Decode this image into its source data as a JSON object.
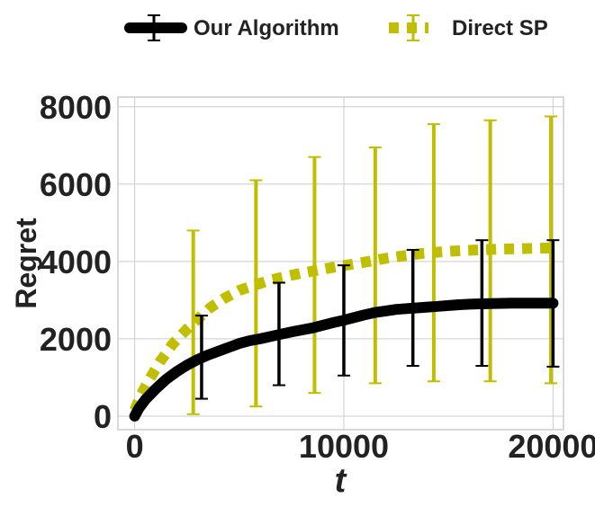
{
  "chart_data": {
    "type": "line",
    "title": "",
    "xlabel": "t",
    "ylabel": "Regret",
    "xlim": [
      -800,
      20500
    ],
    "ylim": [
      -350,
      8250
    ],
    "xticks": [
      0,
      10000,
      20000
    ],
    "xtick_labels": [
      "0",
      "10000",
      "20000"
    ],
    "yticks": [
      0,
      2000,
      4000,
      6000,
      8000
    ],
    "ytick_labels": [
      "0",
      "2000",
      "4000",
      "6000",
      "8000"
    ],
    "grid": true,
    "legend_placement": "top-center-outside",
    "series": [
      {
        "name": "Our Algorithm",
        "color": "#000000",
        "style": "solid",
        "x": [
          0,
          200,
          500,
          1000,
          1500,
          2000,
          2500,
          3000,
          3500,
          4000,
          4500,
          5000,
          5500,
          6000,
          6500,
          7000,
          7500,
          8000,
          8500,
          9000,
          9500,
          10000,
          10500,
          11000,
          11500,
          12000,
          12500,
          13000,
          13500,
          14000,
          14500,
          15000,
          15500,
          16000,
          16500,
          17000,
          17500,
          18000,
          18500,
          19000,
          19500,
          20000
        ],
        "y": [
          0,
          200,
          420,
          700,
          950,
          1150,
          1320,
          1460,
          1580,
          1680,
          1780,
          1880,
          1950,
          2000,
          2060,
          2120,
          2180,
          2230,
          2280,
          2350,
          2420,
          2480,
          2550,
          2620,
          2680,
          2720,
          2760,
          2780,
          2800,
          2820,
          2840,
          2860,
          2880,
          2895,
          2905,
          2910,
          2915,
          2920,
          2920,
          2920,
          2920,
          2920
        ],
        "error_bars": [
          {
            "x": 3200,
            "low": 450,
            "high": 2600
          },
          {
            "x": 6900,
            "low": 800,
            "high": 3450
          },
          {
            "x": 10000,
            "low": 1050,
            "high": 3900
          },
          {
            "x": 13300,
            "low": 1300,
            "high": 4300
          },
          {
            "x": 16600,
            "low": 1300,
            "high": 4550
          },
          {
            "x": 20000,
            "low": 1280,
            "high": 4550
          }
        ]
      },
      {
        "name": "Direct SP",
        "color": "#bfbf00",
        "style": "dotted",
        "x": [
          0,
          300,
          700,
          1200,
          1800,
          2500,
          3000,
          3600,
          4300,
          5000,
          5800,
          6500,
          7300,
          8000,
          8800,
          9600,
          10400,
          11200,
          12000,
          12900,
          13800,
          14700,
          15600,
          16500,
          17400,
          18300,
          19200,
          20000
        ],
        "y": [
          150,
          550,
          950,
          1400,
          1850,
          2250,
          2500,
          2800,
          3050,
          3250,
          3400,
          3520,
          3620,
          3700,
          3780,
          3860,
          3930,
          4000,
          4080,
          4150,
          4210,
          4250,
          4280,
          4300,
          4320,
          4330,
          4340,
          4350
        ],
        "error_bars": [
          {
            "x": 2800,
            "low": 50,
            "high": 4800
          },
          {
            "x": 5800,
            "low": 250,
            "high": 6100
          },
          {
            "x": 8600,
            "low": 600,
            "high": 6700
          },
          {
            "x": 11500,
            "low": 850,
            "high": 6950
          },
          {
            "x": 14300,
            "low": 900,
            "high": 7550
          },
          {
            "x": 17000,
            "low": 900,
            "high": 7650
          },
          {
            "x": 19900,
            "low": 850,
            "high": 7750
          }
        ]
      }
    ]
  }
}
